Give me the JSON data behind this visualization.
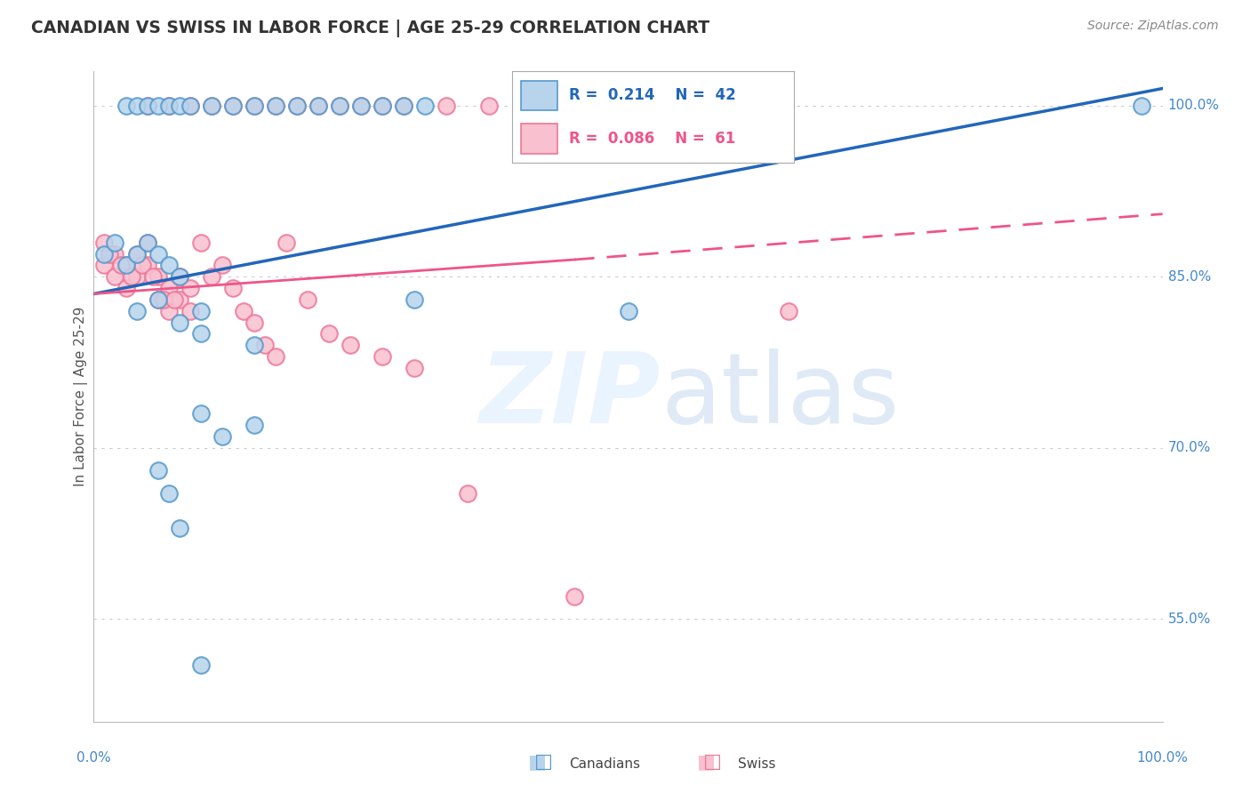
{
  "title": "CANADIAN VS SWISS IN LABOR FORCE | AGE 25-29 CORRELATION CHART",
  "source": "Source: ZipAtlas.com",
  "ylabel": "In Labor Force | Age 25-29",
  "legend_r_canadian": "R =  0.214",
  "legend_n_canadian": "N =  42",
  "legend_r_swiss": "R =  0.086",
  "legend_n_swiss": "N =  61",
  "canadian_face": "#b8d4ec",
  "canadian_edge": "#5599cc",
  "swiss_face": "#f9c0cf",
  "swiss_edge": "#ee7799",
  "canadian_line_color": "#2266bb",
  "swiss_line_color": "#ee5588",
  "grid_color": "#cccccc",
  "right_label_color": "#4488cc",
  "title_color": "#333333",
  "source_color": "#888888",
  "ylabel_color": "#555555",
  "ytick_values": [
    55.0,
    70.0,
    85.0,
    100.0
  ],
  "xlim": [
    0,
    100
  ],
  "ylim": [
    46,
    103
  ],
  "canadians_x": [
    3,
    4,
    5,
    6,
    7,
    8,
    9,
    11,
    13,
    15,
    17,
    19,
    21,
    23,
    25,
    27,
    29,
    31,
    1,
    2,
    3,
    4,
    5,
    6,
    7,
    8,
    4,
    6,
    8,
    10,
    10,
    15,
    30,
    50,
    8,
    10,
    15,
    10,
    12,
    6,
    7,
    98
  ],
  "canadians_y": [
    100,
    100,
    100,
    100,
    100,
    100,
    100,
    100,
    100,
    100,
    100,
    100,
    100,
    100,
    100,
    100,
    100,
    100,
    87,
    88,
    86,
    87,
    88,
    87,
    86,
    85,
    82,
    83,
    81,
    80,
    82,
    79,
    83,
    82,
    63,
    51,
    72,
    73,
    71,
    68,
    66,
    100
  ],
  "swiss_x": [
    1,
    1,
    2,
    2,
    3,
    3,
    4,
    4,
    5,
    5,
    6,
    6,
    7,
    7,
    8,
    8,
    9,
    9,
    1.5,
    2.5,
    3.5,
    4.5,
    5.5,
    6.5,
    7.5,
    10,
    11,
    12,
    13,
    14,
    15,
    16,
    17,
    18,
    20,
    22,
    24,
    27,
    30,
    35,
    5,
    7,
    9,
    11,
    13,
    15,
    17,
    19,
    21,
    23,
    25,
    27,
    29,
    33,
    37,
    41,
    45,
    50,
    57,
    45,
    65
  ],
  "swiss_y": [
    88,
    86,
    87,
    85,
    86,
    84,
    87,
    85,
    88,
    86,
    85,
    83,
    84,
    82,
    85,
    83,
    84,
    82,
    87,
    86,
    85,
    86,
    85,
    83,
    83,
    88,
    85,
    86,
    84,
    82,
    81,
    79,
    78,
    88,
    83,
    80,
    79,
    78,
    77,
    66,
    100,
    100,
    100,
    100,
    100,
    100,
    100,
    100,
    100,
    100,
    100,
    100,
    100,
    100,
    100,
    100,
    100,
    100,
    100,
    57,
    82
  ],
  "can_line_x0": 0,
  "can_line_x1": 100,
  "can_line_y0": 83.5,
  "can_line_y1": 101.5,
  "swiss_solid_x0": 0,
  "swiss_solid_x1": 45,
  "swiss_solid_y0": 83.5,
  "swiss_solid_y1": 86.5,
  "swiss_dash_x0": 45,
  "swiss_dash_x1": 100,
  "swiss_dash_y0": 86.5,
  "swiss_dash_y1": 90.5
}
